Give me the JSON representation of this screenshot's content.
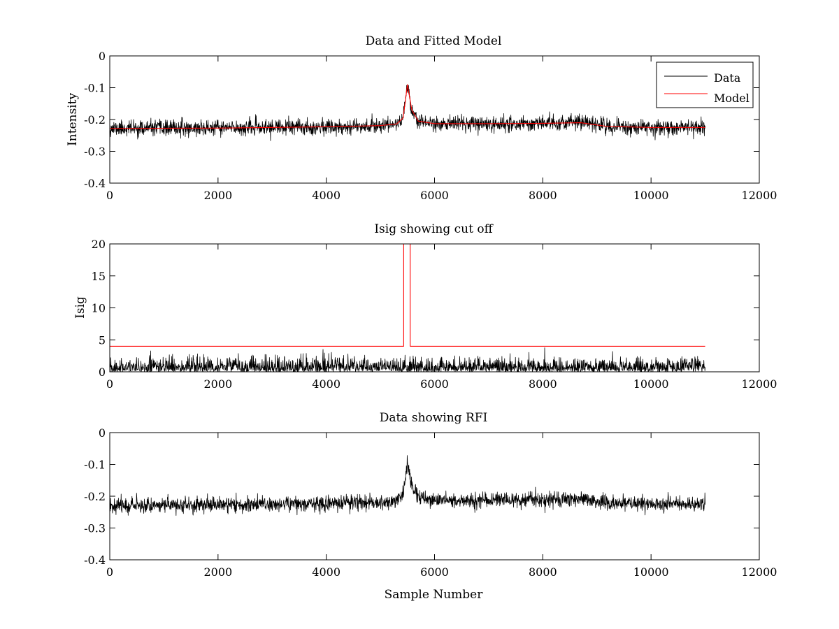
{
  "figure": {
    "background": "#ffffff"
  },
  "colors": {
    "data": "#000000",
    "model": "#ff0000",
    "axis": "#000000"
  },
  "chart_data": [
    {
      "type": "line",
      "title": "Data and Fitted Model",
      "xlabel": "",
      "ylabel": "Intensity",
      "xlim": [
        0,
        12000
      ],
      "ylim": [
        -0.4,
        0
      ],
      "xticks": [
        0,
        2000,
        4000,
        6000,
        8000,
        10000,
        12000
      ],
      "yticks": [
        0,
        -0.1,
        -0.2,
        -0.3,
        -0.4
      ],
      "xtick_labels": [
        "0",
        "2000",
        "4000",
        "6000",
        "8000",
        "10000",
        "12000"
      ],
      "ytick_labels": [
        "0",
        "-0.1",
        "-0.2",
        "-0.3",
        "-0.4"
      ],
      "legend": {
        "placement": "top-right",
        "entries": [
          "Data",
          "Model"
        ]
      },
      "series": [
        {
          "name": "Data",
          "kind": "noisy",
          "color": "#000000",
          "x_range": [
            0,
            11000
          ],
          "noise_amplitude": 0.012,
          "seed": 11,
          "baseline_points": [
            [
              0,
              -0.228
            ],
            [
              2000,
              -0.227
            ],
            [
              4000,
              -0.223
            ],
            [
              5000,
              -0.219
            ],
            [
              5300,
              -0.214
            ],
            [
              5420,
              -0.195
            ],
            [
              5500,
              -0.09
            ],
            [
              5580,
              -0.17
            ],
            [
              5700,
              -0.205
            ],
            [
              6000,
              -0.213
            ],
            [
              7000,
              -0.213
            ],
            [
              8000,
              -0.212
            ],
            [
              8700,
              -0.208
            ],
            [
              9200,
              -0.222
            ],
            [
              10000,
              -0.225
            ],
            [
              11000,
              -0.225
            ]
          ]
        },
        {
          "name": "Model",
          "kind": "smooth",
          "color": "#ff0000",
          "x_range": [
            0,
            11000
          ],
          "points": [
            [
              0,
              -0.228
            ],
            [
              2000,
              -0.227
            ],
            [
              4000,
              -0.223
            ],
            [
              5000,
              -0.219
            ],
            [
              5300,
              -0.214
            ],
            [
              5420,
              -0.195
            ],
            [
              5500,
              -0.09
            ],
            [
              5580,
              -0.17
            ],
            [
              5700,
              -0.205
            ],
            [
              6000,
              -0.213
            ],
            [
              7000,
              -0.213
            ],
            [
              8000,
              -0.212
            ],
            [
              8700,
              -0.21
            ],
            [
              9200,
              -0.222
            ],
            [
              10000,
              -0.225
            ],
            [
              11000,
              -0.225
            ]
          ]
        }
      ]
    },
    {
      "type": "line",
      "title": "Isig showing cut off",
      "xlabel": "",
      "ylabel": "Isig",
      "xlim": [
        0,
        12000
      ],
      "ylim": [
        0,
        20
      ],
      "xticks": [
        0,
        2000,
        4000,
        6000,
        8000,
        10000,
        12000
      ],
      "yticks": [
        0,
        5,
        10,
        15,
        20
      ],
      "xtick_labels": [
        "0",
        "2000",
        "4000",
        "6000",
        "8000",
        "10000",
        "12000"
      ],
      "ytick_labels": [
        "0",
        "5",
        "10",
        "15",
        "20"
      ],
      "series": [
        {
          "name": "Isig",
          "kind": "abs-noise",
          "color": "#000000",
          "x_range": [
            0,
            11000
          ],
          "noise_scale": 1.0,
          "seed": 23,
          "baseline_points": [
            [
              0,
              0
            ],
            [
              11000,
              0
            ]
          ]
        },
        {
          "name": "Cut off",
          "kind": "step",
          "color": "#ff0000",
          "points": [
            [
              0,
              4
            ],
            [
              5430,
              4
            ],
            [
              5430,
              20
            ],
            [
              5550,
              20
            ],
            [
              5550,
              4
            ],
            [
              11000,
              4
            ]
          ]
        }
      ]
    },
    {
      "type": "line",
      "title": "Data showing RFI",
      "xlabel": "Sample Number",
      "ylabel": "",
      "xlim": [
        0,
        12000
      ],
      "ylim": [
        -0.4,
        0
      ],
      "xticks": [
        0,
        2000,
        4000,
        6000,
        8000,
        10000,
        12000
      ],
      "yticks": [
        0,
        -0.1,
        -0.2,
        -0.3,
        -0.4
      ],
      "xtick_labels": [
        "0",
        "2000",
        "4000",
        "6000",
        "8000",
        "10000",
        "12000"
      ],
      "ytick_labels": [
        "0",
        "-0.1",
        "-0.2",
        "-0.3",
        "-0.4"
      ],
      "series": [
        {
          "name": "Data",
          "kind": "noisy",
          "color": "#000000",
          "x_range": [
            0,
            11000
          ],
          "noise_amplitude": 0.012,
          "seed": 37,
          "baseline_points": [
            [
              0,
              -0.228
            ],
            [
              2000,
              -0.227
            ],
            [
              4000,
              -0.223
            ],
            [
              5000,
              -0.219
            ],
            [
              5300,
              -0.214
            ],
            [
              5420,
              -0.195
            ],
            [
              5500,
              -0.09
            ],
            [
              5580,
              -0.17
            ],
            [
              5700,
              -0.205
            ],
            [
              6000,
              -0.213
            ],
            [
              7000,
              -0.213
            ],
            [
              8000,
              -0.212
            ],
            [
              8700,
              -0.208
            ],
            [
              9200,
              -0.222
            ],
            [
              10000,
              -0.225
            ],
            [
              11000,
              -0.225
            ]
          ]
        }
      ]
    }
  ]
}
